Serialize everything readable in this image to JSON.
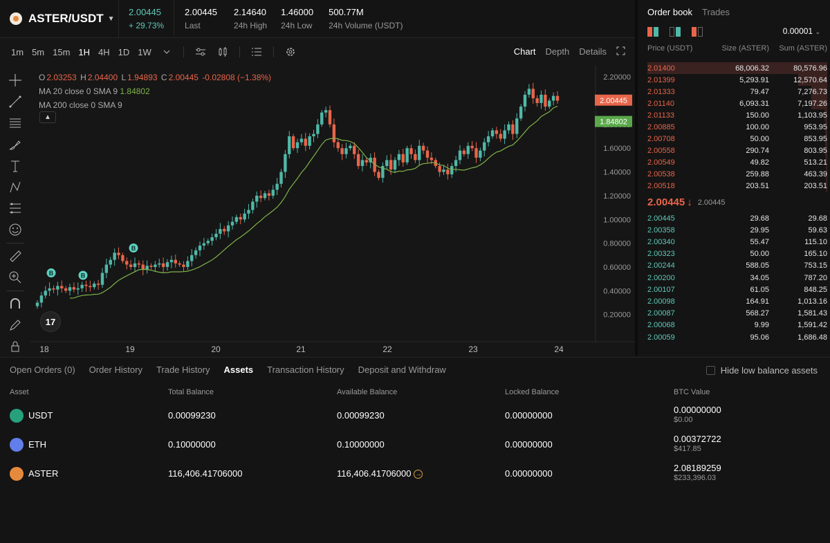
{
  "header": {
    "pair": "ASTER/USDT",
    "price": "2.00445",
    "change": "+ 29.73%",
    "stats": [
      {
        "value": "2.00445",
        "label": "Last"
      },
      {
        "value": "2.14640",
        "label": "24h High"
      },
      {
        "value": "1.46000",
        "label": "24h Low"
      },
      {
        "value": "500.77M",
        "label": "24h Volume (USDT)"
      }
    ]
  },
  "toolbar": {
    "intervals": [
      "1m",
      "5m",
      "15m",
      "1H",
      "4H",
      "1D",
      "1W"
    ],
    "active_interval": "1H",
    "views": [
      "Chart",
      "Depth",
      "Details"
    ],
    "active_view": "Chart"
  },
  "chart_legend": {
    "o_label": "O",
    "o": "2.03253",
    "h_label": "H",
    "h": "2.04400",
    "l_label": "L",
    "l": "1.94893",
    "c_label": "C",
    "c": "2.00445",
    "chg": "-0.02808 (−1.38%)",
    "ma20_label": "MA 20 close 0 SMA 9",
    "ma20_value": "1.84802",
    "ma200_label": "MA 200 close 0 SMA 9",
    "tv": "17"
  },
  "chart_data": {
    "type": "candlestick",
    "x_ticks": [
      "18",
      "19",
      "20",
      "21",
      "22",
      "23",
      "24"
    ],
    "y_ticks": [
      "2.20000",
      "2.00000",
      "1.80000",
      "1.60000",
      "1.40000",
      "1.20000",
      "1.00000",
      "0.80000",
      "0.60000",
      "0.40000",
      "0.20000"
    ],
    "ylim": [
      0.0,
      2.3
    ],
    "price_label": "2.00445",
    "ma_label": "1.84802",
    "markers": [
      {
        "label": "B",
        "x": "18",
        "y": 0.55
      },
      {
        "label": "B",
        "x": "18.45",
        "y": 0.53
      },
      {
        "label": "B",
        "x": "19",
        "y": 0.76
      }
    ],
    "colors": {
      "up": "#4fb8a8",
      "down": "#e8654a",
      "ma": "#7fb34a"
    },
    "closes": [
      0.3,
      0.36,
      0.4,
      0.42,
      0.41,
      0.44,
      0.42,
      0.4,
      0.43,
      0.41,
      0.42,
      0.45,
      0.44,
      0.43,
      0.46,
      0.45,
      0.55,
      0.62,
      0.66,
      0.72,
      0.7,
      0.65,
      0.62,
      0.6,
      0.63,
      0.62,
      0.58,
      0.61,
      0.6,
      0.62,
      0.63,
      0.6,
      0.64,
      0.66,
      0.63,
      0.62,
      0.6,
      0.65,
      0.7,
      0.74,
      0.78,
      0.8,
      0.82,
      0.85,
      0.88,
      0.92,
      0.9,
      0.95,
      0.98,
      1.02,
      1.0,
      1.05,
      1.08,
      1.15,
      1.2,
      1.18,
      1.22,
      1.2,
      1.25,
      1.3,
      1.4,
      1.55,
      1.7,
      1.6,
      1.65,
      1.68,
      1.62,
      1.7,
      1.72,
      1.8,
      1.9,
      1.92,
      1.8,
      1.65,
      1.6,
      1.55,
      1.6,
      1.62,
      1.55,
      1.45,
      1.5,
      1.48,
      1.52,
      1.4,
      1.35,
      1.45,
      1.5,
      1.42,
      1.5,
      1.55,
      1.48,
      1.6,
      1.55,
      1.5,
      1.62,
      1.58,
      1.52,
      1.5,
      1.45,
      1.4,
      1.42,
      1.38,
      1.45,
      1.5,
      1.58,
      1.55,
      1.62,
      1.6,
      1.52,
      1.58,
      1.65,
      1.7,
      1.75,
      1.72,
      1.68,
      1.75,
      1.8,
      1.72,
      1.85,
      1.95,
      2.05,
      2.1,
      2.02,
      1.98,
      2.05,
      1.95,
      2.0,
      2.04,
      2.0
    ]
  },
  "orderbook": {
    "tabs": [
      "Order book",
      "Trades"
    ],
    "active_tab": "Order book",
    "tick": "0.00001",
    "headers": [
      "Price (USDT)",
      "Size (ASTER)",
      "Sum (ASTER)"
    ],
    "asks": [
      {
        "price": "2.01400",
        "size": "68,006.32",
        "sum": "80,576.96",
        "depth": 1.0
      },
      {
        "price": "2.01399",
        "size": "5,293.91",
        "sum": "12,570.64",
        "depth": 0.16
      },
      {
        "price": "2.01333",
        "size": "79.47",
        "sum": "7,276.73",
        "depth": 0.09
      },
      {
        "price": "2.01140",
        "size": "6,093.31",
        "sum": "7,197.26",
        "depth": 0.09
      },
      {
        "price": "2.01133",
        "size": "150.00",
        "sum": "1,103.95",
        "depth": 0.014
      },
      {
        "price": "2.00885",
        "size": "100.00",
        "sum": "953.95",
        "depth": 0.012
      },
      {
        "price": "2.00708",
        "size": "50.00",
        "sum": "853.95",
        "depth": 0.011
      },
      {
        "price": "2.00558",
        "size": "290.74",
        "sum": "803.95",
        "depth": 0.01
      },
      {
        "price": "2.00549",
        "size": "49.82",
        "sum": "513.21",
        "depth": 0.006
      },
      {
        "price": "2.00538",
        "size": "259.88",
        "sum": "463.39",
        "depth": 0.006
      },
      {
        "price": "2.00518",
        "size": "203.51",
        "sum": "203.51",
        "depth": 0.003
      }
    ],
    "mid_price": "2.00445",
    "mid_arrow": "↓",
    "mid_mark": "2.00445",
    "bids": [
      {
        "price": "2.00445",
        "size": "29.68",
        "sum": "29.68"
      },
      {
        "price": "2.00358",
        "size": "29.95",
        "sum": "59.63"
      },
      {
        "price": "2.00340",
        "size": "55.47",
        "sum": "115.10"
      },
      {
        "price": "2.00323",
        "size": "50.00",
        "sum": "165.10"
      },
      {
        "price": "2.00244",
        "size": "588.05",
        "sum": "753.15"
      },
      {
        "price": "2.00200",
        "size": "34.05",
        "sum": "787.20"
      },
      {
        "price": "2.00107",
        "size": "61.05",
        "sum": "848.25"
      },
      {
        "price": "2.00098",
        "size": "164.91",
        "sum": "1,013.16"
      },
      {
        "price": "2.00087",
        "size": "568.27",
        "sum": "1,581.43"
      },
      {
        "price": "2.00068",
        "size": "9.99",
        "sum": "1,591.42"
      },
      {
        "price": "2.00059",
        "size": "95.06",
        "sum": "1,686.48"
      }
    ]
  },
  "bottom": {
    "tabs": [
      "Open Orders (0)",
      "Order History",
      "Trade History",
      "Assets",
      "Transaction History",
      "Deposit and Withdraw"
    ],
    "active_tab": "Assets",
    "hide_low": "Hide low balance assets",
    "headers": [
      "Asset",
      "Total Balance",
      "Available Balance",
      "Locked Balance",
      "BTC Value"
    ],
    "assets": [
      {
        "symbol": "USDT",
        "total": "0.00099230",
        "available": "0.00099230",
        "locked": "0.00000000",
        "btc": "0.00000000",
        "usd": "$0.00",
        "icon": "usdt-icon",
        "color": "#26a17b"
      },
      {
        "symbol": "ETH",
        "total": "0.10000000",
        "available": "0.10000000",
        "locked": "0.00000000",
        "btc": "0.00372722",
        "usd": "$417.85",
        "icon": "eth-icon",
        "color": "#627eea"
      },
      {
        "symbol": "ASTER",
        "total": "116,406.41706000",
        "available": "116,406.41706000",
        "locked": "0.00000000",
        "btc": "2.08189259",
        "usd": "$233,396.03",
        "icon": "aster-icon",
        "color": "#e58a3d"
      }
    ]
  }
}
